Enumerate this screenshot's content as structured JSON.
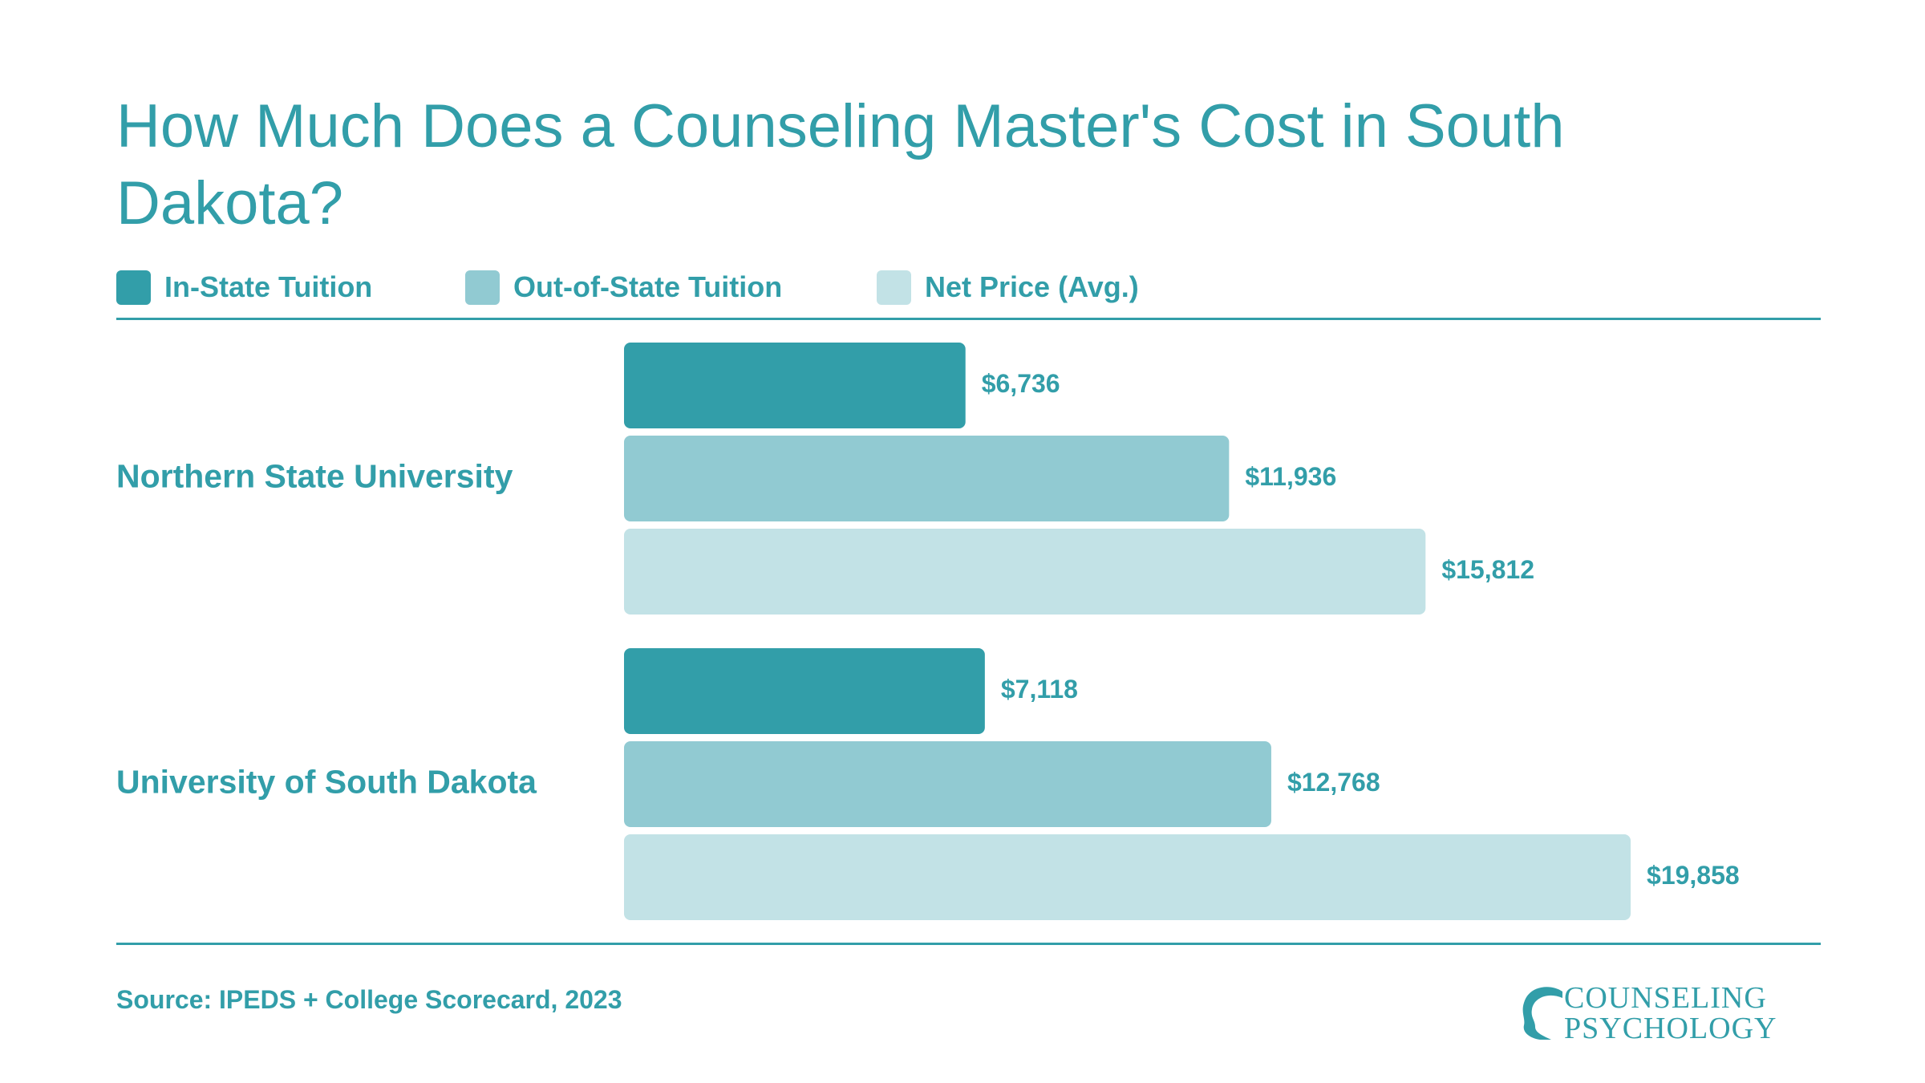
{
  "colors": {
    "accent": "#329ea9",
    "in_state": "#329ea9",
    "out_of_state": "#91cad2",
    "net_price": "#c2e2e6"
  },
  "title": "How Much Does a Counseling Master's Cost in South Dakota?",
  "legend": [
    {
      "label": "In-State Tuition",
      "color": "#329ea9"
    },
    {
      "label": "Out-of-State Tuition",
      "color": "#91cad2"
    },
    {
      "label": "Net Price (Avg.)",
      "color": "#c2e2e6"
    }
  ],
  "chart_data": {
    "type": "bar",
    "orientation": "horizontal",
    "title": "How Much Does a Counseling Master's Cost in South Dakota?",
    "categories": [
      "Northern State University",
      "University of South Dakota"
    ],
    "series": [
      {
        "name": "In-State Tuition",
        "values": [
          6736,
          7118
        ],
        "labels": [
          "$6,736",
          "$7,118"
        ]
      },
      {
        "name": "Out-of-State Tuition",
        "values": [
          11936,
          12768
        ],
        "labels": [
          "$11,936",
          "$12,768"
        ]
      },
      {
        "name": "Net Price (Avg.)",
        "values": [
          15812,
          19858
        ],
        "labels": [
          "$15,812",
          "$19,858"
        ]
      }
    ],
    "grid": false,
    "legend_position": "top-left"
  },
  "footer": {
    "source": "Source: IPEDS + College Scorecard, 2023"
  },
  "logo": {
    "line1": "COUNSELING",
    "line2": "PSYCHOLOGY",
    "icon": "head-profile-icon"
  }
}
